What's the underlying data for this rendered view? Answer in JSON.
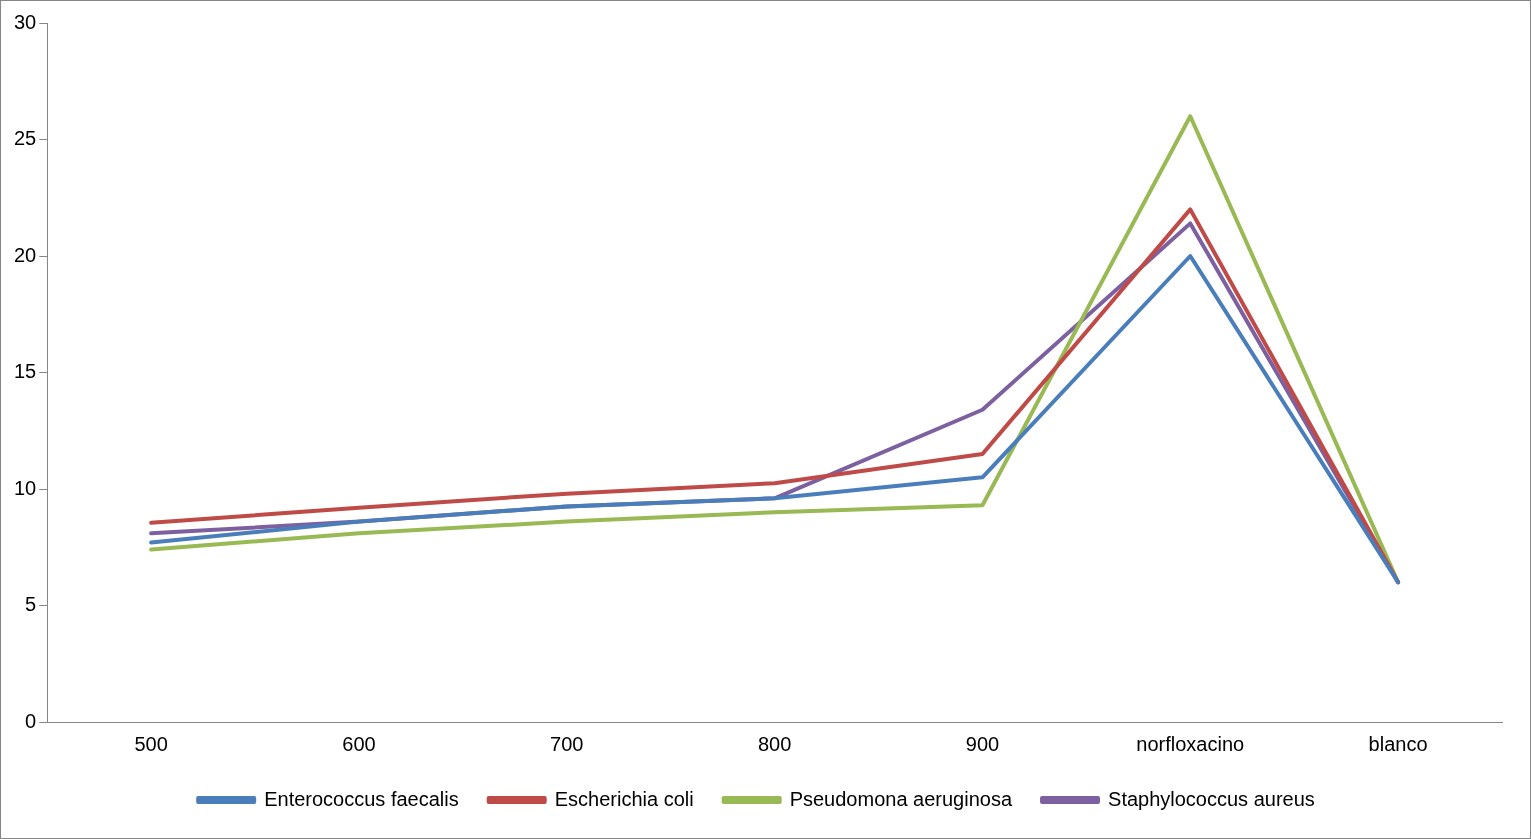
{
  "chart_data": {
    "type": "line",
    "categories": [
      "500",
      "600",
      "700",
      "800",
      "900",
      "norfloxacino",
      "blanco"
    ],
    "series": [
      {
        "name": "Enterococcus faecalis",
        "color": "#4a7ebb",
        "values": [
          7.7,
          8.6,
          9.25,
          9.6,
          10.5,
          20,
          6
        ]
      },
      {
        "name": "Escherichia coli",
        "color": "#be4b48",
        "values": [
          8.55,
          9.2,
          9.8,
          10.25,
          11.5,
          22,
          6
        ]
      },
      {
        "name": "Pseudomona aeruginosa",
        "color": "#98b954",
        "values": [
          7.4,
          8.1,
          8.6,
          9.0,
          9.3,
          26,
          6
        ]
      },
      {
        "name": "Staphylococcus aureus",
        "color": "#7d60a0",
        "values": [
          8.1,
          8.6,
          9.25,
          9.6,
          13.4,
          21.4,
          6
        ]
      }
    ],
    "ylim": [
      0,
      30
    ],
    "yticks": [
      0,
      5,
      10,
      15,
      20,
      25,
      30
    ],
    "grid": false,
    "legend": "bottom",
    "marker": "none",
    "line_style": "solid"
  }
}
